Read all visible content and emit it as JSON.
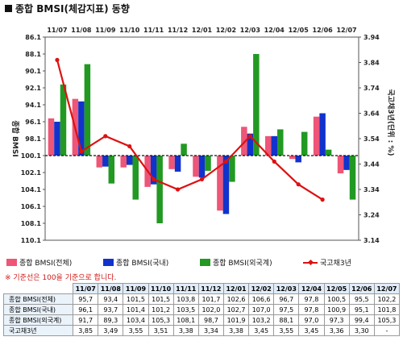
{
  "title": "종합 BMSI(체감지표) 동향",
  "chart_data": {
    "type": "bar",
    "categories": [
      "11/07",
      "11/08",
      "11/09",
      "11/10",
      "11/11",
      "11/12",
      "12/01",
      "12/02",
      "12/03",
      "12/04",
      "12/05",
      "12/06",
      "12/07"
    ],
    "ylabel": "종합 BMSI",
    "y2label": "국고채3년(단위 : %)",
    "ylim": [
      86.1,
      110.1
    ],
    "y_inverted": true,
    "baseline": 100.1,
    "yticks": [
      86.1,
      88.1,
      90.1,
      92.1,
      94.1,
      96.1,
      98.1,
      100.1,
      102.1,
      104.1,
      106.1,
      108.1,
      110.1
    ],
    "y2lim": [
      3.14,
      3.94
    ],
    "y2ticks": [
      3.14,
      3.24,
      3.34,
      3.44,
      3.54,
      3.64,
      3.74,
      3.84,
      3.94
    ],
    "series": [
      {
        "name": "종합 BMSI(전체)",
        "type": "bar",
        "color": "#ee5577",
        "values": [
          95.7,
          93.4,
          101.5,
          101.5,
          103.8,
          101.7,
          102.6,
          106.6,
          96.7,
          97.8,
          100.5,
          95.5,
          102.2
        ]
      },
      {
        "name": "종합 BMSI(국내)",
        "type": "bar",
        "color": "#1133cc",
        "values": [
          96.1,
          93.7,
          101.4,
          101.2,
          103.5,
          102.0,
          102.7,
          107.0,
          97.5,
          97.8,
          100.9,
          95.1,
          101.8
        ]
      },
      {
        "name": "종합 BMSI(외국계)",
        "type": "bar",
        "color": "#229922",
        "values": [
          91.7,
          89.3,
          103.4,
          105.3,
          108.1,
          98.7,
          101.9,
          103.2,
          88.1,
          97.0,
          97.3,
          99.4,
          105.3
        ]
      },
      {
        "name": "국고채3년",
        "type": "line",
        "axis": "right",
        "color": "#dd1111",
        "values": [
          3.85,
          3.49,
          3.55,
          3.51,
          3.38,
          3.34,
          3.38,
          3.45,
          3.55,
          3.45,
          3.36,
          3.3,
          null
        ]
      }
    ],
    "legend": "bottom",
    "grid": false
  },
  "note": "※ 기준선은 100을 기준으로 합니다.",
  "table": {
    "headers": [
      "11/07",
      "11/08",
      "11/09",
      "11/10",
      "11/11",
      "11/12",
      "12/01",
      "12/02",
      "12/03",
      "12/04",
      "12/05",
      "12/06",
      "12/07"
    ],
    "rows": [
      {
        "label": "종합 BMSI(전체)",
        "values": [
          "95,7",
          "93,4",
          "101,5",
          "101,5",
          "103,8",
          "101,7",
          "102,6",
          "106,6",
          "96,7",
          "97,8",
          "100,5",
          "95,5",
          "102,2"
        ]
      },
      {
        "label": "종합 BMSI(국내)",
        "values": [
          "96,1",
          "93,7",
          "101,4",
          "101,2",
          "103,5",
          "102,0",
          "102,7",
          "107,0",
          "97,5",
          "97,8",
          "100,9",
          "95,1",
          "101,8"
        ]
      },
      {
        "label": "종합 BMSI(외국계)",
        "values": [
          "91,7",
          "89,3",
          "103,4",
          "105,3",
          "108,1",
          "98,7",
          "101,9",
          "103,2",
          "88,1",
          "97,0",
          "97,3",
          "99,4",
          "105,3"
        ]
      },
      {
        "label": "국고채3년",
        "values": [
          "3,85",
          "3,49",
          "3,55",
          "3,51",
          "3,38",
          "3,34",
          "3,38",
          "3,45",
          "3,55",
          "3,45",
          "3,36",
          "3,30",
          "-"
        ]
      }
    ]
  }
}
